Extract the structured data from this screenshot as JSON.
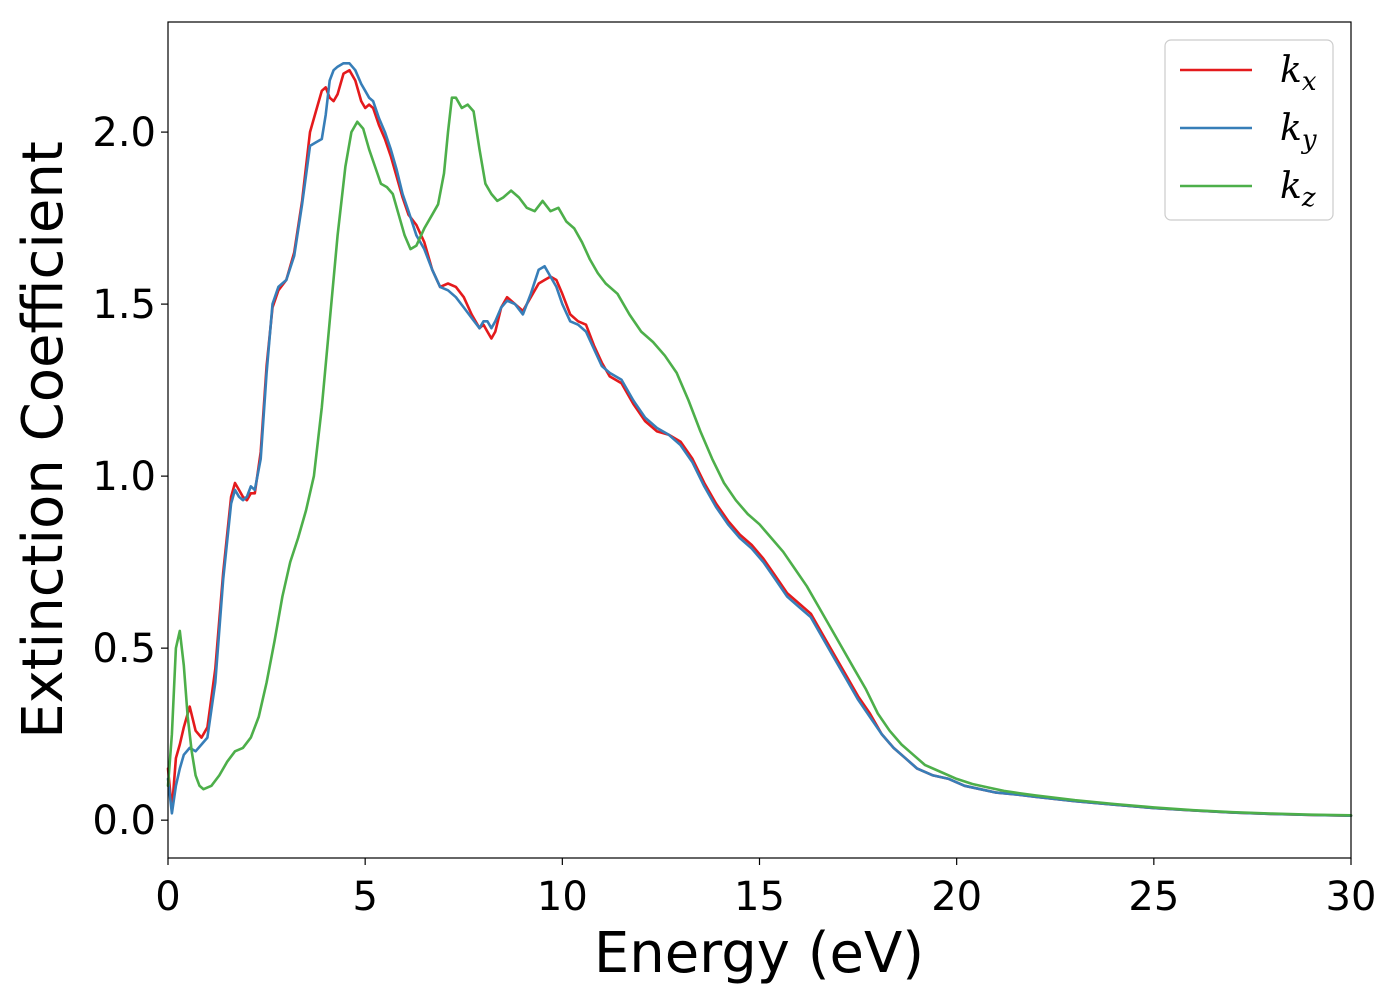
{
  "chart_data": {
    "type": "line",
    "title": "",
    "xlabel": "Energy (eV)",
    "ylabel": "Extinction Coefficient",
    "xlim": [
      0,
      30
    ],
    "ylim": [
      -0.11,
      2.32
    ],
    "xticks": [
      0,
      5,
      10,
      15,
      20,
      25,
      30
    ],
    "xtick_labels": [
      "0",
      "5",
      "10",
      "15",
      "20",
      "25",
      "30"
    ],
    "yticks": [
      0.0,
      0.5,
      1.0,
      1.5,
      2.0
    ],
    "ytick_labels": [
      "0.0",
      "0.5",
      "1.0",
      "1.5",
      "2.0"
    ],
    "grid": false,
    "legend_position": "top-right",
    "series": [
      {
        "name": "k",
        "subscript": "x",
        "color": "#e41a1c",
        "x": [
          0,
          0.1,
          0.2,
          0.3,
          0.4,
          0.55,
          0.7,
          0.85,
          1.0,
          1.2,
          1.4,
          1.6,
          1.7,
          1.8,
          1.9,
          2.0,
          2.1,
          2.2,
          2.35,
          2.5,
          2.65,
          2.8,
          3.0,
          3.2,
          3.4,
          3.6,
          3.75,
          3.9,
          4.0,
          4.1,
          4.2,
          4.3,
          4.45,
          4.6,
          4.75,
          4.9,
          5.0,
          5.1,
          5.2,
          5.35,
          5.5,
          5.65,
          5.8,
          5.95,
          6.1,
          6.3,
          6.5,
          6.7,
          6.9,
          7.1,
          7.3,
          7.5,
          7.7,
          7.9,
          8.0,
          8.1,
          8.2,
          8.3,
          8.45,
          8.6,
          8.8,
          9.0,
          9.2,
          9.4,
          9.55,
          9.7,
          9.85,
          10.0,
          10.2,
          10.4,
          10.6,
          10.8,
          11.0,
          11.2,
          11.5,
          11.8,
          12.1,
          12.4,
          12.7,
          13.0,
          13.3,
          13.6,
          13.9,
          14.2,
          14.5,
          14.8,
          15.1,
          15.4,
          15.7,
          16.0,
          16.3,
          16.6,
          16.9,
          17.2,
          17.5,
          17.8,
          18.1,
          18.4,
          18.7,
          19.0,
          19.4,
          19.8,
          20.2,
          20.6,
          21.0,
          21.5,
          22.0,
          23.0,
          24.0,
          25.0,
          26.0,
          27.0,
          28.0,
          29.0,
          30.0
        ],
        "y": [
          0.15,
          0.03,
          0.18,
          0.22,
          0.27,
          0.33,
          0.26,
          0.24,
          0.27,
          0.44,
          0.72,
          0.94,
          0.98,
          0.96,
          0.94,
          0.93,
          0.95,
          0.95,
          1.07,
          1.32,
          1.49,
          1.54,
          1.57,
          1.65,
          1.8,
          2.0,
          2.06,
          2.12,
          2.13,
          2.1,
          2.09,
          2.11,
          2.17,
          2.18,
          2.15,
          2.09,
          2.07,
          2.08,
          2.07,
          2.02,
          1.98,
          1.93,
          1.87,
          1.81,
          1.76,
          1.73,
          1.68,
          1.6,
          1.55,
          1.56,
          1.55,
          1.52,
          1.47,
          1.43,
          1.44,
          1.42,
          1.4,
          1.42,
          1.49,
          1.52,
          1.5,
          1.48,
          1.52,
          1.56,
          1.57,
          1.58,
          1.57,
          1.53,
          1.47,
          1.45,
          1.44,
          1.38,
          1.33,
          1.29,
          1.27,
          1.21,
          1.16,
          1.13,
          1.12,
          1.1,
          1.05,
          0.98,
          0.92,
          0.87,
          0.83,
          0.8,
          0.76,
          0.71,
          0.66,
          0.63,
          0.6,
          0.54,
          0.48,
          0.42,
          0.36,
          0.31,
          0.25,
          0.21,
          0.18,
          0.15,
          0.13,
          0.12,
          0.1,
          0.09,
          0.08,
          0.075,
          0.068,
          0.055,
          0.045,
          0.035,
          0.028,
          0.022,
          0.018,
          0.015,
          0.013
        ]
      },
      {
        "name": "k",
        "subscript": "y",
        "color": "#377eb8",
        "x": [
          0,
          0.1,
          0.2,
          0.3,
          0.4,
          0.55,
          0.7,
          0.85,
          1.0,
          1.2,
          1.4,
          1.6,
          1.7,
          1.8,
          1.9,
          2.0,
          2.1,
          2.2,
          2.35,
          2.5,
          2.65,
          2.8,
          3.0,
          3.2,
          3.4,
          3.6,
          3.75,
          3.9,
          4.0,
          4.1,
          4.2,
          4.3,
          4.45,
          4.6,
          4.75,
          4.9,
          5.0,
          5.1,
          5.2,
          5.35,
          5.5,
          5.65,
          5.8,
          5.95,
          6.1,
          6.3,
          6.5,
          6.7,
          6.9,
          7.1,
          7.3,
          7.5,
          7.7,
          7.9,
          8.0,
          8.1,
          8.2,
          8.3,
          8.45,
          8.6,
          8.8,
          9.0,
          9.2,
          9.4,
          9.55,
          9.7,
          9.85,
          10.0,
          10.2,
          10.4,
          10.6,
          10.8,
          11.0,
          11.2,
          11.5,
          11.8,
          12.1,
          12.4,
          12.7,
          13.0,
          13.3,
          13.6,
          13.9,
          14.2,
          14.5,
          14.8,
          15.1,
          15.4,
          15.7,
          16.0,
          16.3,
          16.6,
          16.9,
          17.2,
          17.5,
          17.8,
          18.1,
          18.4,
          18.7,
          19.0,
          19.4,
          19.8,
          20.2,
          20.6,
          21.0,
          21.5,
          22.0,
          23.0,
          24.0,
          25.0,
          26.0,
          27.0,
          28.0,
          29.0,
          30.0
        ],
        "y": [
          0.12,
          0.02,
          0.1,
          0.15,
          0.19,
          0.21,
          0.2,
          0.22,
          0.24,
          0.4,
          0.7,
          0.92,
          0.96,
          0.94,
          0.93,
          0.94,
          0.97,
          0.96,
          1.05,
          1.3,
          1.5,
          1.55,
          1.57,
          1.64,
          1.79,
          1.96,
          1.97,
          1.98,
          2.05,
          2.15,
          2.18,
          2.19,
          2.2,
          2.2,
          2.18,
          2.14,
          2.12,
          2.1,
          2.09,
          2.04,
          2.0,
          1.95,
          1.89,
          1.82,
          1.77,
          1.7,
          1.66,
          1.6,
          1.55,
          1.54,
          1.52,
          1.49,
          1.46,
          1.43,
          1.45,
          1.45,
          1.43,
          1.45,
          1.49,
          1.51,
          1.5,
          1.47,
          1.53,
          1.6,
          1.61,
          1.58,
          1.55,
          1.5,
          1.45,
          1.44,
          1.42,
          1.37,
          1.32,
          1.3,
          1.28,
          1.22,
          1.17,
          1.14,
          1.12,
          1.09,
          1.04,
          0.97,
          0.91,
          0.86,
          0.82,
          0.79,
          0.75,
          0.7,
          0.65,
          0.62,
          0.59,
          0.53,
          0.47,
          0.41,
          0.35,
          0.3,
          0.25,
          0.21,
          0.18,
          0.15,
          0.13,
          0.12,
          0.1,
          0.09,
          0.08,
          0.075,
          0.068,
          0.055,
          0.045,
          0.035,
          0.028,
          0.022,
          0.018,
          0.015,
          0.013
        ]
      },
      {
        "name": "k",
        "subscript": "z",
        "color": "#4daf4a",
        "x": [
          0,
          0.1,
          0.2,
          0.3,
          0.4,
          0.5,
          0.6,
          0.7,
          0.8,
          0.9,
          1.1,
          1.3,
          1.5,
          1.7,
          1.9,
          2.1,
          2.3,
          2.5,
          2.7,
          2.9,
          3.1,
          3.3,
          3.5,
          3.7,
          3.9,
          4.1,
          4.3,
          4.5,
          4.65,
          4.8,
          4.95,
          5.1,
          5.25,
          5.4,
          5.55,
          5.7,
          5.85,
          6.0,
          6.15,
          6.3,
          6.5,
          6.7,
          6.85,
          7.0,
          7.1,
          7.2,
          7.3,
          7.45,
          7.6,
          7.75,
          7.9,
          8.05,
          8.2,
          8.35,
          8.5,
          8.7,
          8.9,
          9.1,
          9.3,
          9.5,
          9.7,
          9.9,
          10.1,
          10.3,
          10.5,
          10.7,
          10.9,
          11.1,
          11.4,
          11.7,
          12.0,
          12.3,
          12.6,
          12.9,
          13.2,
          13.5,
          13.8,
          14.1,
          14.4,
          14.7,
          15.0,
          15.3,
          15.6,
          15.9,
          16.2,
          16.5,
          16.8,
          17.1,
          17.4,
          17.7,
          18.0,
          18.3,
          18.6,
          18.9,
          19.2,
          19.6,
          20.0,
          20.4,
          20.8,
          21.2,
          21.6,
          22.0,
          23.0,
          24.0,
          25.0,
          26.0,
          27.0,
          28.0,
          29.0,
          30.0
        ],
        "y": [
          0.1,
          0.25,
          0.5,
          0.55,
          0.45,
          0.3,
          0.2,
          0.13,
          0.1,
          0.09,
          0.1,
          0.13,
          0.17,
          0.2,
          0.21,
          0.24,
          0.3,
          0.4,
          0.52,
          0.65,
          0.75,
          0.82,
          0.9,
          1.0,
          1.2,
          1.45,
          1.7,
          1.9,
          2.0,
          2.03,
          2.01,
          1.95,
          1.9,
          1.85,
          1.84,
          1.82,
          1.76,
          1.7,
          1.66,
          1.67,
          1.72,
          1.76,
          1.79,
          1.88,
          2.0,
          2.1,
          2.1,
          2.07,
          2.08,
          2.06,
          1.95,
          1.85,
          1.82,
          1.8,
          1.81,
          1.83,
          1.81,
          1.78,
          1.77,
          1.8,
          1.77,
          1.78,
          1.74,
          1.72,
          1.68,
          1.63,
          1.59,
          1.56,
          1.53,
          1.47,
          1.42,
          1.39,
          1.35,
          1.3,
          1.22,
          1.13,
          1.05,
          0.98,
          0.93,
          0.89,
          0.86,
          0.82,
          0.78,
          0.73,
          0.68,
          0.62,
          0.56,
          0.5,
          0.44,
          0.38,
          0.31,
          0.26,
          0.22,
          0.19,
          0.16,
          0.14,
          0.12,
          0.105,
          0.095,
          0.085,
          0.078,
          0.072,
          0.058,
          0.047,
          0.037,
          0.029,
          0.023,
          0.019,
          0.016,
          0.014
        ]
      }
    ]
  }
}
